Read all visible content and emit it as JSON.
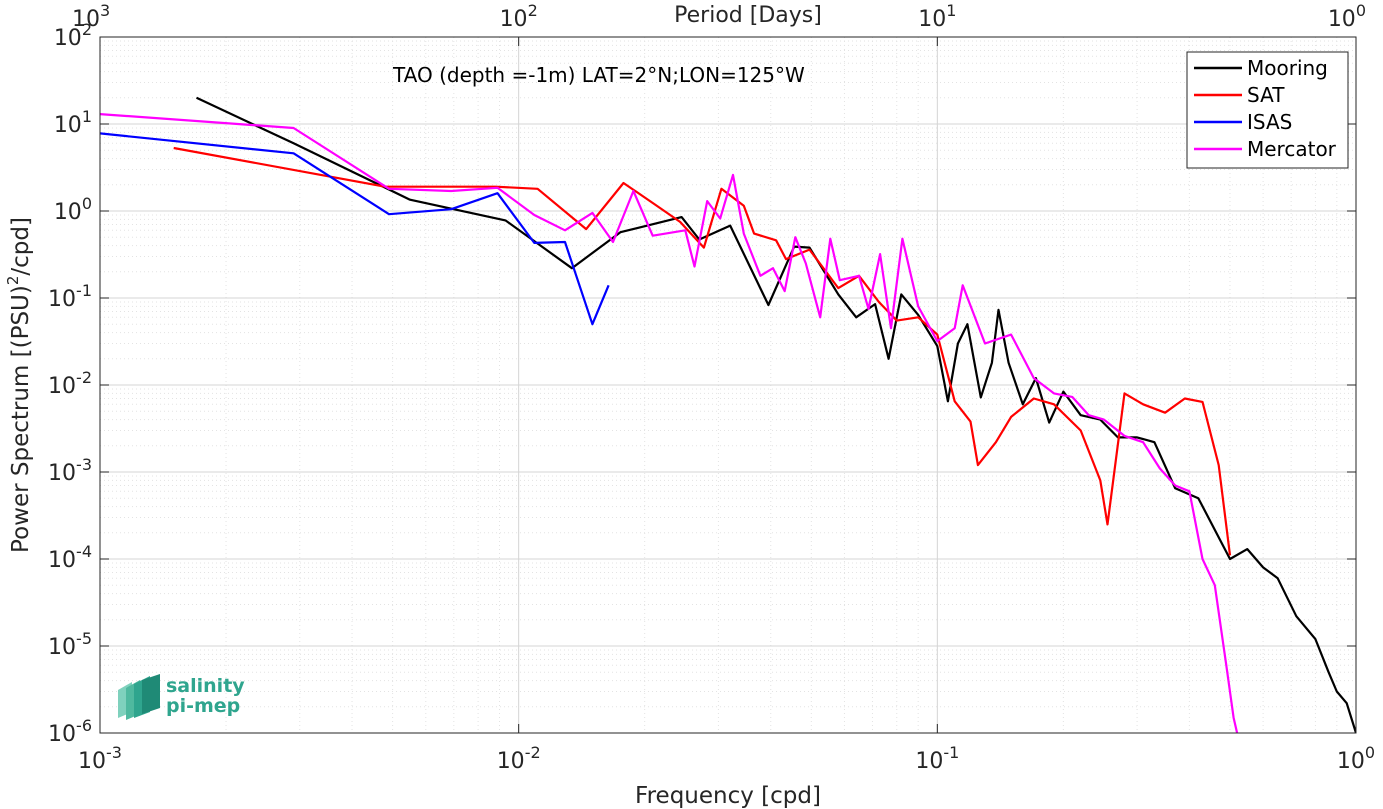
{
  "chart_data": {
    "type": "line",
    "title": "TAO (depth =-1m) LAT=2°N;LON=125°W",
    "xlabel": "Frequency [cpd]",
    "ylabel": "Power Spectrum [(PSU)",
    "ylabel_sup": "2",
    "ylabel_tail": "/cpd]",
    "top_xlabel": "Period [Days]",
    "xscale": "log",
    "yscale": "log",
    "xlim": [
      0.001,
      1
    ],
    "ylim": [
      1e-06,
      100
    ],
    "grid": true,
    "legend_position": "top-right",
    "x_ticks": [
      {
        "value": 0.001,
        "base": "10",
        "exp": "-3"
      },
      {
        "value": 0.01,
        "base": "10",
        "exp": "-2"
      },
      {
        "value": 0.1,
        "base": "10",
        "exp": "-1"
      },
      {
        "value": 1,
        "base": "10",
        "exp": "0"
      }
    ],
    "top_ticks": [
      {
        "value": 0.001,
        "base": "10",
        "exp": "3"
      },
      {
        "value": 0.01,
        "base": "10",
        "exp": "2"
      },
      {
        "value": 0.1,
        "base": "10",
        "exp": "1"
      },
      {
        "value": 1,
        "base": "10",
        "exp": "0"
      }
    ],
    "y_ticks": [
      {
        "value": 100,
        "base": "10",
        "exp": "2"
      },
      {
        "value": 10,
        "base": "10",
        "exp": "1"
      },
      {
        "value": 1,
        "base": "10",
        "exp": "0"
      },
      {
        "value": 0.1,
        "base": "10",
        "exp": "-1"
      },
      {
        "value": 0.01,
        "base": "10",
        "exp": "-2"
      },
      {
        "value": 0.001,
        "base": "10",
        "exp": "-3"
      },
      {
        "value": 0.0001,
        "base": "10",
        "exp": "-4"
      },
      {
        "value": 1e-05,
        "base": "10",
        "exp": "-5"
      },
      {
        "value": 1e-06,
        "base": "10",
        "exp": "-6"
      }
    ],
    "series": [
      {
        "name": "Mooring",
        "color": "#000000",
        "points": [
          [
            0.0017,
            20
          ],
          [
            0.0029,
            6
          ],
          [
            0.0055,
            1.35
          ],
          [
            0.0093,
            0.78
          ],
          [
            0.0134,
            0.22
          ],
          [
            0.0175,
            0.57
          ],
          [
            0.0245,
            0.85
          ],
          [
            0.027,
            0.47
          ],
          [
            0.032,
            0.68
          ],
          [
            0.0395,
            0.083
          ],
          [
            0.0455,
            0.39
          ],
          [
            0.0495,
            0.38
          ],
          [
            0.058,
            0.11
          ],
          [
            0.064,
            0.06
          ],
          [
            0.071,
            0.085
          ],
          [
            0.0765,
            0.02
          ],
          [
            0.082,
            0.11
          ],
          [
            0.09,
            0.064
          ],
          [
            0.1,
            0.028
          ],
          [
            0.106,
            0.0065
          ],
          [
            0.112,
            0.03
          ],
          [
            0.118,
            0.05
          ],
          [
            0.127,
            0.0072
          ],
          [
            0.135,
            0.018
          ],
          [
            0.14,
            0.073
          ],
          [
            0.148,
            0.018
          ],
          [
            0.16,
            0.006
          ],
          [
            0.172,
            0.012
          ],
          [
            0.185,
            0.0037
          ],
          [
            0.2,
            0.0084
          ],
          [
            0.22,
            0.0045
          ],
          [
            0.245,
            0.004
          ],
          [
            0.27,
            0.0025
          ],
          [
            0.3,
            0.0025
          ],
          [
            0.33,
            0.0022
          ],
          [
            0.37,
            0.00065
          ],
          [
            0.42,
            0.0005
          ],
          [
            0.5,
            0.0001
          ],
          [
            0.55,
            0.00013
          ],
          [
            0.6,
            8e-05
          ],
          [
            0.65,
            6e-05
          ],
          [
            0.72,
            2.2e-05
          ],
          [
            0.8,
            1.2e-05
          ],
          [
            0.86,
            5e-06
          ],
          [
            0.9,
            3e-06
          ],
          [
            0.95,
            2.2e-06
          ],
          [
            1.0,
            1e-06
          ]
        ]
      },
      {
        "name": "SAT",
        "color": "#ff0000",
        "points": [
          [
            0.0015,
            5.3
          ],
          [
            0.0048,
            1.9
          ],
          [
            0.0088,
            1.9
          ],
          [
            0.0111,
            1.8
          ],
          [
            0.0145,
            0.62
          ],
          [
            0.0178,
            2.1
          ],
          [
            0.0211,
            1.2
          ],
          [
            0.0243,
            0.75
          ],
          [
            0.0277,
            0.38
          ],
          [
            0.0305,
            1.8
          ],
          [
            0.0345,
            1.15
          ],
          [
            0.0365,
            0.55
          ],
          [
            0.0412,
            0.46
          ],
          [
            0.0435,
            0.28
          ],
          [
            0.0495,
            0.36
          ],
          [
            0.058,
            0.13
          ],
          [
            0.065,
            0.18
          ],
          [
            0.0725,
            0.09
          ],
          [
            0.08,
            0.055
          ],
          [
            0.09,
            0.06
          ],
          [
            0.1,
            0.038
          ],
          [
            0.11,
            0.0065
          ],
          [
            0.12,
            0.0038
          ],
          [
            0.125,
            0.0012
          ],
          [
            0.138,
            0.0022
          ],
          [
            0.15,
            0.0043
          ],
          [
            0.17,
            0.007
          ],
          [
            0.19,
            0.006
          ],
          [
            0.22,
            0.003
          ],
          [
            0.245,
            0.0008
          ],
          [
            0.255,
            0.00025
          ],
          [
            0.28,
            0.008
          ],
          [
            0.31,
            0.006
          ],
          [
            0.35,
            0.0048
          ],
          [
            0.39,
            0.007
          ],
          [
            0.43,
            0.0064
          ],
          [
            0.47,
            0.0012
          ],
          [
            0.5,
            0.00011
          ]
        ]
      },
      {
        "name": "ISAS",
        "color": "#0000ff",
        "points": [
          [
            0.001,
            7.8
          ],
          [
            0.0029,
            4.6
          ],
          [
            0.0049,
            0.92
          ],
          [
            0.0069,
            1.05
          ],
          [
            0.0089,
            1.6
          ],
          [
            0.0109,
            0.43
          ],
          [
            0.0129,
            0.44
          ],
          [
            0.015,
            0.05
          ],
          [
            0.0164,
            0.14
          ]
        ]
      },
      {
        "name": "Mercator",
        "color": "#ff00ff",
        "points": [
          [
            0.001,
            13
          ],
          [
            0.0029,
            9
          ],
          [
            0.0049,
            1.8
          ],
          [
            0.0069,
            1.7
          ],
          [
            0.0089,
            1.85
          ],
          [
            0.0109,
            0.9
          ],
          [
            0.0129,
            0.6
          ],
          [
            0.015,
            0.95
          ],
          [
            0.0168,
            0.44
          ],
          [
            0.0188,
            1.7
          ],
          [
            0.0209,
            0.52
          ],
          [
            0.025,
            0.6
          ],
          [
            0.0263,
            0.23
          ],
          [
            0.0282,
            1.3
          ],
          [
            0.0303,
            0.82
          ],
          [
            0.0325,
            2.6
          ],
          [
            0.0345,
            0.55
          ],
          [
            0.0378,
            0.18
          ],
          [
            0.0405,
            0.22
          ],
          [
            0.0432,
            0.12
          ],
          [
            0.0458,
            0.5
          ],
          [
            0.0485,
            0.25
          ],
          [
            0.0525,
            0.06
          ],
          [
            0.0555,
            0.48
          ],
          [
            0.0585,
            0.16
          ],
          [
            0.065,
            0.18
          ],
          [
            0.0685,
            0.075
          ],
          [
            0.073,
            0.32
          ],
          [
            0.0775,
            0.045
          ],
          [
            0.0825,
            0.48
          ],
          [
            0.09,
            0.08
          ],
          [
            0.1,
            0.032
          ],
          [
            0.11,
            0.045
          ],
          [
            0.115,
            0.14
          ],
          [
            0.13,
            0.03
          ],
          [
            0.15,
            0.038
          ],
          [
            0.17,
            0.012
          ],
          [
            0.19,
            0.008
          ],
          [
            0.21,
            0.0073
          ],
          [
            0.23,
            0.0045
          ],
          [
            0.25,
            0.004
          ],
          [
            0.28,
            0.0026
          ],
          [
            0.31,
            0.0022
          ],
          [
            0.34,
            0.0011
          ],
          [
            0.37,
            0.0007
          ],
          [
            0.4,
            0.0006
          ],
          [
            0.43,
            0.0001
          ],
          [
            0.46,
            5e-05
          ],
          [
            0.49,
            6e-06
          ],
          [
            0.51,
            1.5e-06
          ],
          [
            0.52,
            1e-06
          ]
        ]
      }
    ]
  },
  "logo": {
    "line1": "salinity",
    "line2": "pi-mep"
  }
}
